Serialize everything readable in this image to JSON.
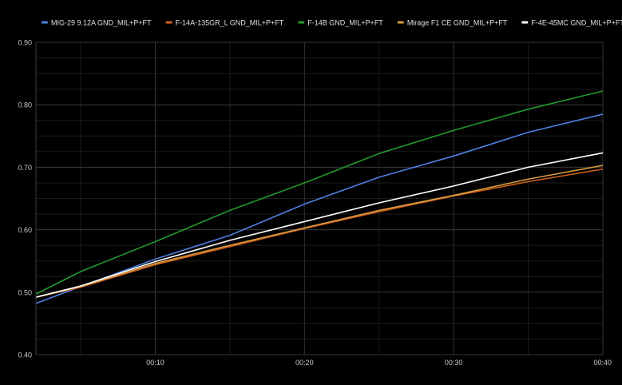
{
  "chart_data": {
    "type": "line",
    "title": "",
    "xlabel": "",
    "ylabel": "",
    "x_unit": "seconds",
    "xlim": [
      2,
      40
    ],
    "ylim": [
      0.4,
      0.9
    ],
    "x_ticks": [
      {
        "value": 10,
        "label": "00:10"
      },
      {
        "value": 20,
        "label": "00:20"
      },
      {
        "value": 30,
        "label": "00:30"
      },
      {
        "value": 40,
        "label": "00:40"
      }
    ],
    "y_ticks": [
      {
        "value": 0.4,
        "label": "0.40"
      },
      {
        "value": 0.5,
        "label": "0.50"
      },
      {
        "value": 0.6,
        "label": "0.60"
      },
      {
        "value": 0.7,
        "label": "0.70"
      },
      {
        "value": 0.8,
        "label": "0.80"
      },
      {
        "value": 0.9,
        "label": "0.90"
      }
    ],
    "grid": true,
    "legend_position": "top",
    "background": "#000000",
    "series": [
      {
        "name": "MIG-29 9.12A GND_MIL+P+FT",
        "color": "#4f7fe0",
        "points": [
          [
            2,
            0.482
          ],
          [
            5,
            0.509
          ],
          [
            10,
            0.553
          ],
          [
            15,
            0.591
          ],
          [
            20,
            0.641
          ],
          [
            25,
            0.684
          ],
          [
            30,
            0.718
          ],
          [
            35,
            0.756
          ],
          [
            40,
            0.785
          ]
        ]
      },
      {
        "name": "F-14A-135GR_L GND_MIL+P+FT",
        "color": "#d35f1a",
        "points": [
          [
            2,
            0.492
          ],
          [
            5,
            0.508
          ],
          [
            10,
            0.544
          ],
          [
            15,
            0.573
          ],
          [
            20,
            0.602
          ],
          [
            25,
            0.629
          ],
          [
            30,
            0.654
          ],
          [
            35,
            0.677
          ],
          [
            40,
            0.697
          ]
        ]
      },
      {
        "name": "F-14B GND_MIL+P+FT",
        "color": "#1f9a2a",
        "points": [
          [
            2,
            0.497
          ],
          [
            5,
            0.533
          ],
          [
            10,
            0.581
          ],
          [
            15,
            0.631
          ],
          [
            20,
            0.675
          ],
          [
            25,
            0.722
          ],
          [
            30,
            0.759
          ],
          [
            35,
            0.793
          ],
          [
            40,
            0.822
          ]
        ]
      },
      {
        "name": "Mirage F1 CE GND_MIL+P+FT",
        "color": "#d49a40",
        "points": [
          [
            2,
            0.492
          ],
          [
            5,
            0.509
          ],
          [
            10,
            0.546
          ],
          [
            15,
            0.575
          ],
          [
            20,
            0.603
          ],
          [
            25,
            0.631
          ],
          [
            30,
            0.655
          ],
          [
            35,
            0.681
          ],
          [
            40,
            0.703
          ]
        ]
      },
      {
        "name": "F-4E-45MC GND_MIL+P+FT",
        "color": "#ffffff",
        "points": [
          [
            2,
            0.492
          ],
          [
            5,
            0.51
          ],
          [
            10,
            0.549
          ],
          [
            15,
            0.583
          ],
          [
            20,
            0.613
          ],
          [
            25,
            0.643
          ],
          [
            30,
            0.67
          ],
          [
            35,
            0.7
          ],
          [
            40,
            0.723
          ]
        ]
      }
    ]
  }
}
